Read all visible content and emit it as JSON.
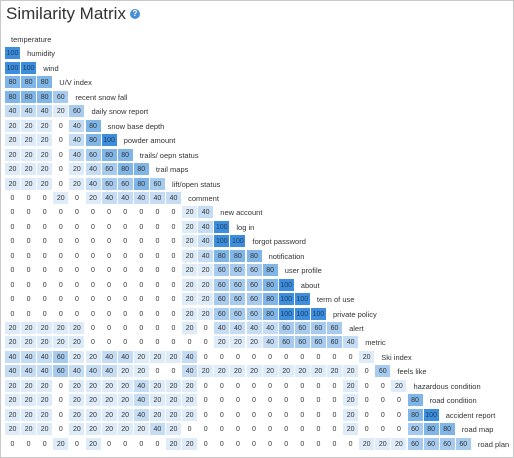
{
  "header": {
    "title": "Similarity Matrix",
    "help_glyph": "?"
  },
  "colors": {
    "c100": "#3d8fdd",
    "c80": "#7fb5e7",
    "c60": "#a6cbef",
    "c40": "#c5ddf4",
    "c20": "#deebf8",
    "c0": "#ffffff"
  },
  "chart_data": {
    "type": "heatmap",
    "title": "Similarity Matrix",
    "labels": [
      "temperature",
      "humidity",
      "wind",
      "U/V index",
      "recent snow fall",
      "daily snow report",
      "snow base depth",
      "powder amount",
      "trails/ oepn status",
      "trail maps",
      "lift/open status",
      "comment",
      "new account",
      "log in",
      "forgot password",
      "notification",
      "user profile",
      "about",
      "term of use",
      "private policy",
      "alert",
      "metric",
      "Ski index",
      "feels like",
      "hazardous condition",
      "road condition",
      "accident report",
      "road map",
      "road plan"
    ],
    "values": [
      [],
      [
        100
      ],
      [
        100,
        100
      ],
      [
        80,
        80,
        80
      ],
      [
        80,
        80,
        80,
        60
      ],
      [
        40,
        40,
        40,
        20,
        60
      ],
      [
        20,
        20,
        20,
        0,
        40,
        80
      ],
      [
        20,
        20,
        20,
        0,
        40,
        80,
        100
      ],
      [
        20,
        20,
        20,
        0,
        40,
        60,
        80,
        80
      ],
      [
        20,
        20,
        20,
        0,
        20,
        40,
        60,
        80,
        80
      ],
      [
        20,
        20,
        20,
        0,
        20,
        40,
        60,
        60,
        80,
        60
      ],
      [
        0,
        0,
        0,
        20,
        0,
        20,
        40,
        40,
        40,
        40,
        40
      ],
      [
        0,
        0,
        0,
        0,
        0,
        0,
        0,
        0,
        0,
        0,
        0,
        20,
        40
      ],
      [
        0,
        0,
        0,
        0,
        0,
        0,
        0,
        0,
        0,
        0,
        0,
        20,
        40,
        100
      ],
      [
        0,
        0,
        0,
        0,
        0,
        0,
        0,
        0,
        0,
        0,
        0,
        20,
        40,
        100,
        100
      ],
      [
        0,
        0,
        0,
        0,
        0,
        0,
        0,
        0,
        0,
        0,
        0,
        20,
        40,
        80,
        80,
        80
      ],
      [
        0,
        0,
        0,
        0,
        0,
        0,
        0,
        0,
        0,
        0,
        0,
        20,
        20,
        60,
        60,
        60,
        80
      ],
      [
        0,
        0,
        0,
        0,
        0,
        0,
        0,
        0,
        0,
        0,
        0,
        20,
        20,
        60,
        60,
        60,
        80,
        100
      ],
      [
        0,
        0,
        0,
        0,
        0,
        0,
        0,
        0,
        0,
        0,
        0,
        20,
        20,
        60,
        60,
        60,
        80,
        100,
        100
      ],
      [
        0,
        0,
        0,
        0,
        0,
        0,
        0,
        0,
        0,
        0,
        0,
        20,
        20,
        60,
        60,
        60,
        80,
        100,
        100,
        100
      ],
      [
        20,
        20,
        20,
        20,
        20,
        0,
        0,
        0,
        0,
        0,
        0,
        20,
        0,
        40,
        40,
        40,
        40,
        60,
        60,
        60,
        60
      ],
      [
        20,
        20,
        20,
        20,
        20,
        0,
        0,
        0,
        0,
        0,
        0,
        0,
        0,
        20,
        20,
        20,
        40,
        60,
        60,
        60,
        60,
        40
      ],
      [
        40,
        40,
        40,
        60,
        20,
        20,
        40,
        40,
        20,
        20,
        20,
        40,
        0,
        0,
        0,
        0,
        0,
        0,
        0,
        0,
        0,
        0,
        20
      ],
      [
        40,
        40,
        40,
        60,
        40,
        40,
        40,
        20,
        20,
        0,
        0,
        40,
        20,
        20,
        20,
        20,
        20,
        20,
        20,
        20,
        20,
        20,
        0,
        60
      ],
      [
        20,
        20,
        20,
        0,
        20,
        20,
        20,
        20,
        40,
        20,
        20,
        20,
        0,
        0,
        0,
        0,
        0,
        0,
        0,
        0,
        0,
        20,
        0,
        0,
        20
      ],
      [
        20,
        20,
        20,
        0,
        20,
        20,
        20,
        20,
        40,
        20,
        20,
        20,
        0,
        0,
        0,
        0,
        0,
        0,
        0,
        0,
        0,
        20,
        0,
        0,
        0,
        80
      ],
      [
        20,
        20,
        20,
        0,
        20,
        20,
        20,
        20,
        40,
        20,
        20,
        20,
        0,
        0,
        0,
        0,
        0,
        0,
        0,
        0,
        0,
        20,
        0,
        0,
        0,
        80,
        100
      ],
      [
        20,
        20,
        20,
        0,
        20,
        20,
        20,
        20,
        20,
        40,
        20,
        0,
        0,
        0,
        0,
        0,
        0,
        0,
        0,
        0,
        0,
        20,
        0,
        0,
        0,
        60,
        80,
        80
      ],
      [
        0,
        0,
        0,
        20,
        0,
        20,
        0,
        0,
        0,
        0,
        20,
        20,
        0,
        0,
        0,
        0,
        0,
        0,
        0,
        0,
        0,
        0,
        20,
        20,
        20,
        60,
        60,
        60,
        60
      ]
    ]
  }
}
